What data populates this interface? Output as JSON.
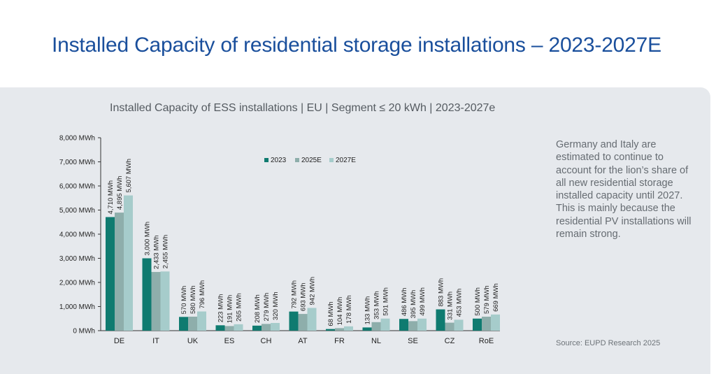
{
  "page": {
    "title": "Installed Capacity of residential storage installations – 2023-2027E",
    "description": "Germany and Italy are estimated to continue to account for the lion’s share of all new residential storage installed capacity until 2027. This is mainly because the residential PV installations will remain strong.",
    "source": "Source: EUPD Research 2025"
  },
  "colors": {
    "s2023": "#0f7b70",
    "s2025": "#8eaeab",
    "s2027": "#a6cccb",
    "title": "#1a4f9c"
  },
  "chart_data": {
    "type": "bar",
    "title": "Installed Capacity of ESS installations | EU | Segment ≤ 20 kWh | 2023-2027e",
    "categories": [
      "DE",
      "IT",
      "UK",
      "ES",
      "CH",
      "AT",
      "FR",
      "NL",
      "SE",
      "CZ",
      "RoE"
    ],
    "series": [
      {
        "name": "2023",
        "values": [
          4710,
          3000,
          570,
          223,
          208,
          792,
          68,
          133,
          486,
          883,
          500
        ],
        "labels": [
          "4,710 MWh",
          "3,000 MWh",
          "570 MWh",
          "223 MWh",
          "208 MWh",
          "792 MWh",
          "68 MWh",
          "133 MWh",
          "486 MWh",
          "883 MWh",
          "500 MWh"
        ]
      },
      {
        "name": "2025E",
        "values": [
          4895,
          2433,
          580,
          191,
          279,
          693,
          104,
          353,
          395,
          331,
          579
        ],
        "labels": [
          "4,895 MWh",
          "2,433 MWh",
          "580 MWh",
          "191 MWh",
          "279 MWh",
          "693 MWh",
          "104 MWh",
          "353 MWh",
          "395 MWh",
          "331 MWh",
          "579 MWh"
        ]
      },
      {
        "name": "2027E",
        "values": [
          5607,
          2455,
          796,
          265,
          320,
          942,
          178,
          501,
          499,
          453,
          669
        ],
        "labels": [
          "5,607 MWh",
          "2,455 MWh",
          "796 MWh",
          "265 MWh",
          "320 MWh",
          "942 MWh",
          "178 MWh",
          "501 MWh",
          "499 MWh",
          "453 MWh",
          "669 MWh"
        ]
      }
    ],
    "ylim": [
      0,
      8000
    ],
    "yticks": [
      0,
      1000,
      2000,
      3000,
      4000,
      5000,
      6000,
      7000,
      8000
    ],
    "ytick_labels": [
      "0 MWh",
      "1,000 MWh",
      "2,000 MWh",
      "3,000 MWh",
      "4,000 MWh",
      "5,000 MWh",
      "6,000 MWh",
      "7,000 MWh",
      "8,000 MWh"
    ],
    "legend_position": "top-center",
    "grid": false
  }
}
